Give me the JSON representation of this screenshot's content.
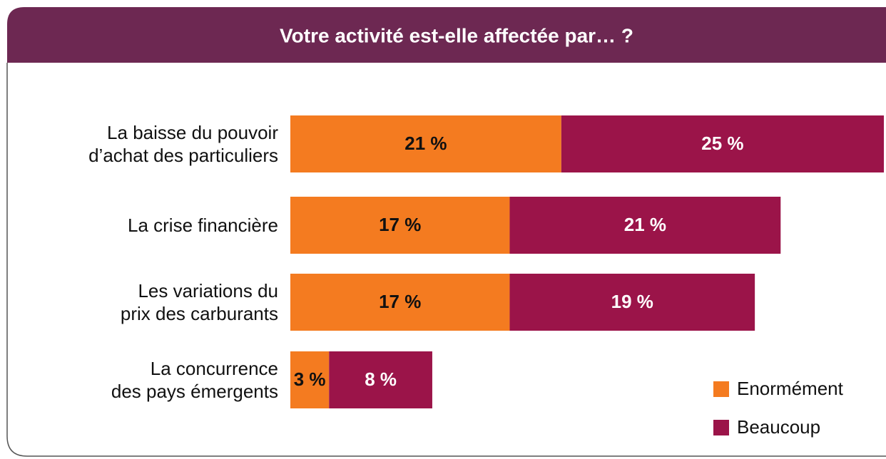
{
  "chart_data": {
    "type": "stacked-bar-horizontal",
    "title": "Votre activité est-elle affectée par… ?",
    "categories": [
      "La baisse du pouvoir\nd’achat des particuliers",
      "La crise financière",
      "Les variations du\nprix des carburants",
      "La concurrence\ndes pays émergents"
    ],
    "series": [
      {
        "name": "Enormément",
        "color": "#f47b20",
        "values": [
          21,
          17,
          17,
          3
        ],
        "value_labels": [
          "21 %",
          "17 %",
          "17 %",
          "3 %"
        ]
      },
      {
        "name": "Beaucoup",
        "color": "#9b1449",
        "values": [
          25,
          21,
          19,
          8
        ],
        "value_labels": [
          "25 %",
          "21 %",
          "19 %",
          "8 %"
        ]
      }
    ],
    "legend": "bottom-right"
  }
}
